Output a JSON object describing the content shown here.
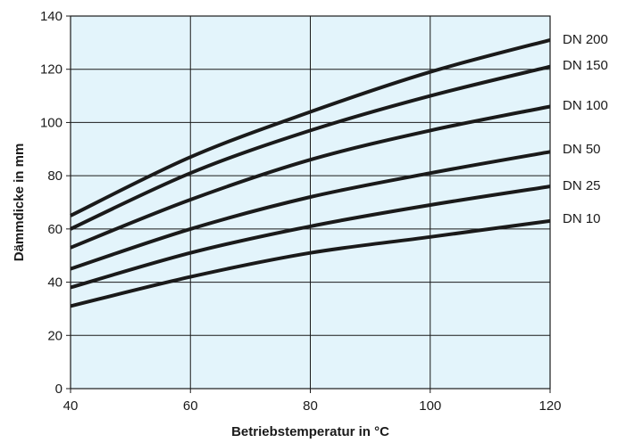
{
  "chart_data": {
    "type": "line",
    "xlabel": "Betriebstemperatur in °C",
    "ylabel": "Dämmdicke in mm",
    "xlim": [
      40,
      120
    ],
    "ylim": [
      0,
      140
    ],
    "x_ticks": [
      "40",
      "60",
      "80",
      "100",
      "120"
    ],
    "y_ticks": [
      "0",
      "20",
      "40",
      "60",
      "80",
      "100",
      "120",
      "140"
    ],
    "grid": true,
    "legend": "right-end labels",
    "colors": {
      "plot_background": "#e3f4fb",
      "line": "#1a1a1a",
      "grid": "#1a1a1a"
    },
    "x": [
      40,
      60,
      80,
      100,
      120
    ],
    "series": [
      {
        "name": "DN 200",
        "values": [
          65,
          87,
          104,
          119,
          131
        ]
      },
      {
        "name": "DN 150",
        "values": [
          60,
          81,
          97,
          110,
          121
        ]
      },
      {
        "name": "DN 100",
        "values": [
          53,
          71,
          86,
          97,
          106
        ]
      },
      {
        "name": "DN 50",
        "values": [
          45,
          60,
          72,
          81,
          89
        ]
      },
      {
        "name": "DN 25",
        "values": [
          38,
          51,
          61,
          69,
          76
        ]
      },
      {
        "name": "DN 10",
        "values": [
          31,
          42,
          51,
          57,
          63
        ]
      }
    ]
  }
}
